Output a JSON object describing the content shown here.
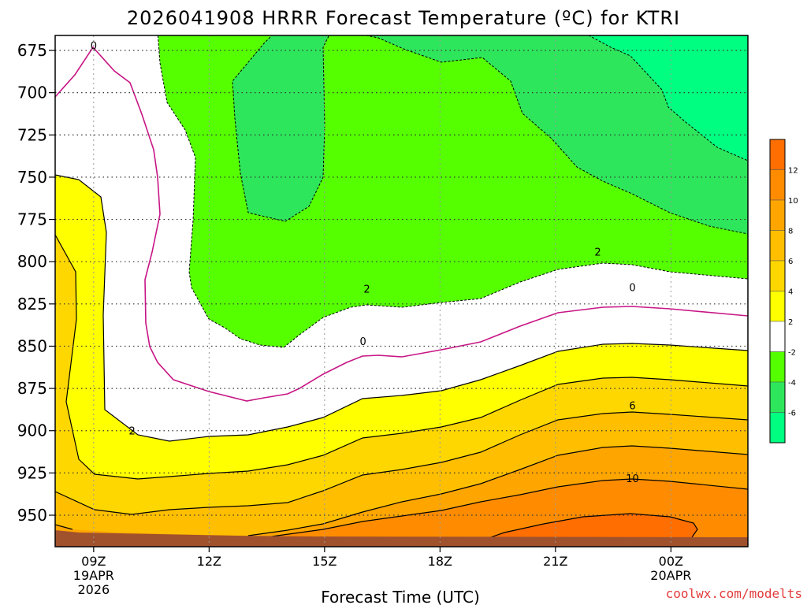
{
  "chart_data": {
    "type": "contour",
    "title": "2026041908 HRRR Forecast Temperature (ºC) for KTRI",
    "xlabel": "Forecast Time (UTC)",
    "ylabel": "",
    "y_axis": "pressure (hPa), increasing downward",
    "ylim": [
      665,
      970
    ],
    "y_ticks": [
      "675",
      "700",
      "725",
      "750",
      "775",
      "800",
      "825",
      "850",
      "875",
      "900",
      "925",
      "950"
    ],
    "x_ticks": [
      {
        "hour": 9,
        "label": "09Z",
        "sub1": "19APR",
        "sub2": "2026"
      },
      {
        "hour": 12,
        "label": "12Z",
        "sub1": "",
        "sub2": ""
      },
      {
        "hour": 15,
        "label": "15Z",
        "sub1": "",
        "sub2": ""
      },
      {
        "hour": 18,
        "label": "18Z",
        "sub1": "",
        "sub2": ""
      },
      {
        "hour": 21,
        "label": "21Z",
        "sub1": "",
        "sub2": ""
      },
      {
        "hour": 24,
        "label": "00Z",
        "sub1": "20APR",
        "sub2": ""
      }
    ],
    "xlim_hours": [
      8,
      26
    ],
    "grid": true,
    "ground_level_hpa": 965,
    "colorbar": {
      "labels": [
        "12",
        "10",
        "8",
        "6",
        "4",
        "2",
        "-2",
        "-4",
        "-6"
      ],
      "bands": [
        {
          "from": 12,
          "to": 14,
          "color": "#ff6e00"
        },
        {
          "from": 10,
          "to": 12,
          "color": "#ff8c00"
        },
        {
          "from": 8,
          "to": 10,
          "color": "#ffa500"
        },
        {
          "from": 6,
          "to": 8,
          "color": "#ffbf00"
        },
        {
          "from": 4,
          "to": 6,
          "color": "#ffd700"
        },
        {
          "from": 2,
          "to": 4,
          "color": "#ffff00"
        },
        {
          "from": -2,
          "to": 2,
          "color": "#ffffff"
        },
        {
          "from": -4,
          "to": -2,
          "color": "#55ff00"
        },
        {
          "from": -6,
          "to": -4,
          "color": "#2ee65c"
        },
        {
          "from": -8,
          "to": -6,
          "color": "#00ff80"
        }
      ]
    },
    "contour_labels": [
      {
        "value": "0",
        "hour": 9.0,
        "hpa": 672
      },
      {
        "value": "2",
        "hour": 10.0,
        "hpa": 900
      },
      {
        "value": "0",
        "hour": 16.0,
        "hpa": 847
      },
      {
        "value": "2",
        "hour": 16.1,
        "hpa": 816
      },
      {
        "value": "2",
        "hour": 22.1,
        "hpa": 794
      },
      {
        "value": "0",
        "hour": 23.0,
        "hpa": 815
      },
      {
        "value": "6",
        "hour": 23.0,
        "hpa": 885
      },
      {
        "value": "10",
        "hour": 23.0,
        "hpa": 928
      }
    ],
    "colors": {
      "background": "#ffffff",
      "ground": "#a0522d",
      "zero_line": "#c71585",
      "contour_line": "#000000"
    }
  },
  "watermark": "coolwx.com/modelts"
}
